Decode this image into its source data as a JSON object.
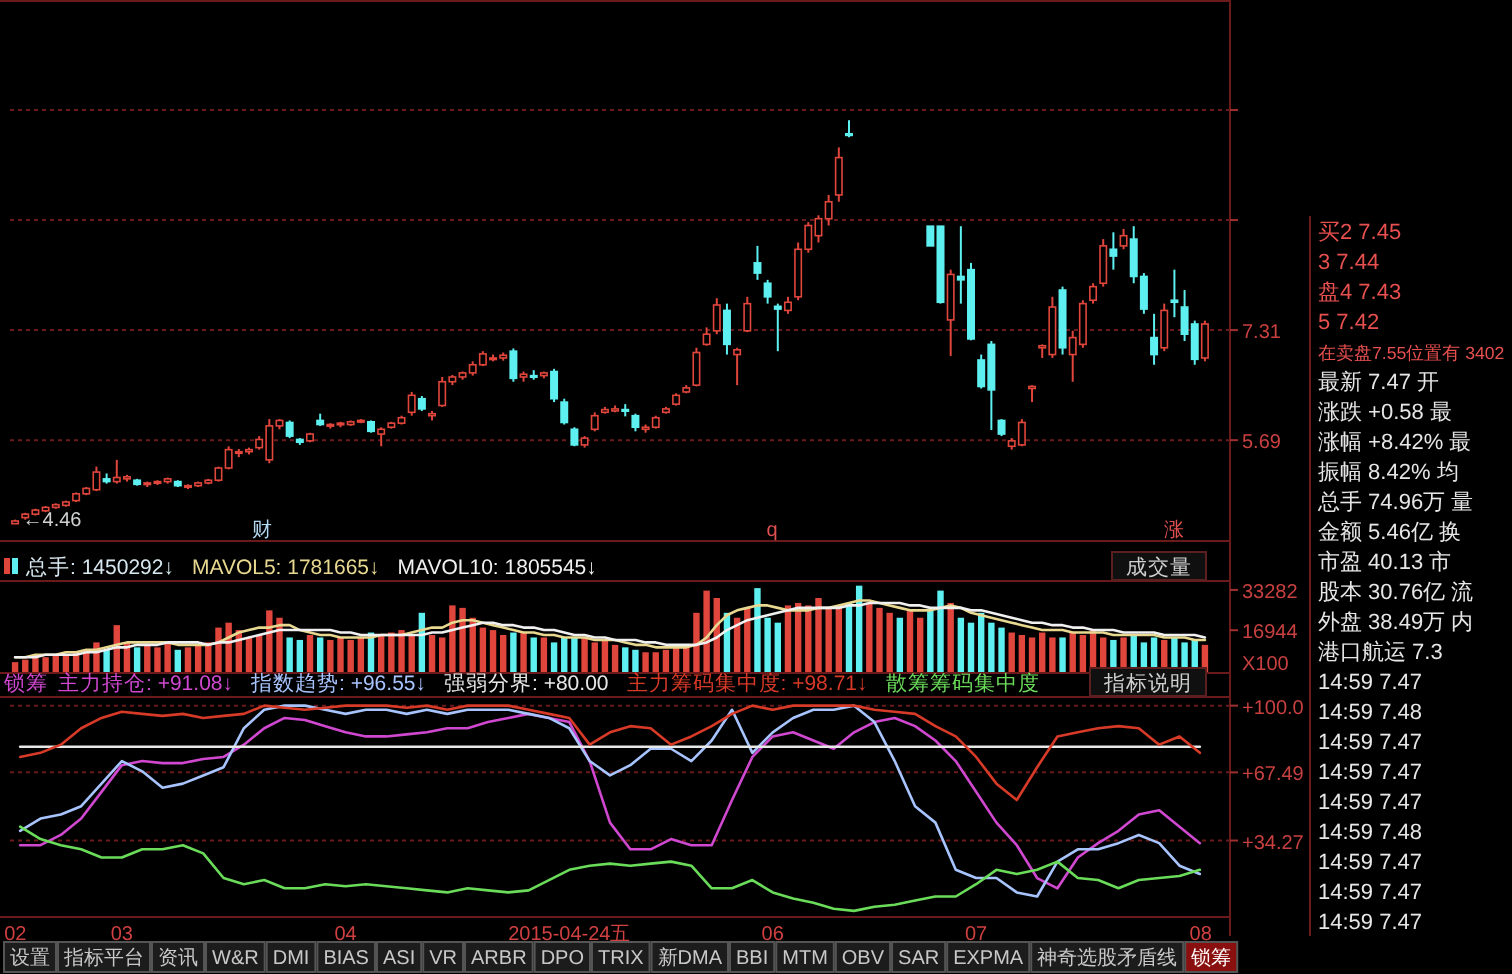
{
  "chart_data": [
    {
      "type": "candlestick",
      "categories": [
        null,
        null,
        null,
        null,
        null,
        null,
        null,
        null,
        null,
        null,
        null,
        null,
        null,
        null,
        null,
        null,
        null,
        null,
        null,
        null,
        null,
        null,
        null,
        null,
        null,
        null,
        null,
        null,
        null,
        null,
        null,
        null,
        null,
        null,
        null,
        null,
        null,
        null,
        null,
        null,
        null,
        null,
        null,
        null,
        null,
        null,
        null,
        null,
        null,
        null,
        null,
        null,
        null,
        null,
        null,
        null,
        null,
        null,
        null,
        null,
        null,
        null,
        null,
        null,
        null,
        null,
        null,
        null,
        null,
        null,
        null,
        null,
        null,
        null,
        null,
        null,
        null,
        null,
        null,
        null,
        null,
        null,
        null,
        null,
        null,
        null,
        null,
        null,
        null,
        null,
        null,
        null,
        null,
        null,
        null,
        null,
        null,
        null,
        null,
        null,
        null,
        null,
        null,
        null,
        null,
        null,
        null,
        null,
        null,
        null,
        null,
        null,
        null,
        null,
        null,
        null,
        null,
        null
      ],
      "ohlc": [
        [
          4.46,
          4.52,
          4.46,
          4.5
        ],
        [
          4.55,
          4.62,
          4.52,
          4.6
        ],
        [
          4.6,
          4.68,
          4.58,
          4.66
        ],
        [
          4.65,
          4.72,
          4.63,
          4.7
        ],
        [
          4.7,
          4.76,
          4.68,
          4.74
        ],
        [
          4.73,
          4.8,
          4.71,
          4.78
        ],
        [
          4.8,
          4.92,
          4.78,
          4.9
        ],
        [
          4.9,
          5.0,
          4.88,
          4.98
        ],
        [
          4.96,
          5.3,
          4.94,
          5.22
        ],
        [
          5.12,
          5.2,
          5.05,
          5.08
        ],
        [
          5.08,
          5.4,
          5.05,
          5.14
        ],
        [
          5.12,
          5.18,
          5.08,
          5.15
        ],
        [
          5.1,
          5.12,
          5.02,
          5.04
        ],
        [
          5.04,
          5.08,
          5.0,
          5.06
        ],
        [
          5.06,
          5.1,
          5.03,
          5.08
        ],
        [
          5.08,
          5.14,
          5.05,
          5.12
        ],
        [
          5.08,
          5.1,
          5.0,
          5.02
        ],
        [
          5.0,
          5.04,
          4.97,
          5.02
        ],
        [
          5.02,
          5.08,
          5.0,
          5.06
        ],
        [
          5.06,
          5.12,
          5.04,
          5.1
        ],
        [
          5.1,
          5.3,
          5.08,
          5.28
        ],
        [
          5.28,
          5.6,
          5.26,
          5.55
        ],
        [
          5.5,
          5.56,
          5.44,
          5.52
        ],
        [
          5.52,
          5.58,
          5.48,
          5.55
        ],
        [
          5.58,
          5.75,
          5.55,
          5.7
        ],
        [
          5.4,
          6.0,
          5.35,
          5.9
        ],
        [
          5.9,
          6.0,
          5.85,
          5.98
        ],
        [
          5.95,
          5.98,
          5.72,
          5.75
        ],
        [
          5.7,
          5.72,
          5.62,
          5.66
        ],
        [
          5.68,
          5.8,
          5.66,
          5.78
        ],
        [
          5.98,
          6.08,
          5.9,
          5.92
        ],
        [
          5.9,
          5.94,
          5.86,
          5.92
        ],
        [
          5.92,
          5.96,
          5.88,
          5.94
        ],
        [
          5.92,
          5.98,
          5.9,
          5.96
        ],
        [
          5.96,
          6.0,
          5.94,
          5.98
        ],
        [
          5.96,
          5.98,
          5.8,
          5.82
        ],
        [
          5.78,
          5.88,
          5.6,
          5.85
        ],
        [
          5.88,
          5.96,
          5.86,
          5.94
        ],
        [
          5.94,
          6.05,
          5.92,
          6.02
        ],
        [
          6.1,
          6.4,
          6.05,
          6.35
        ],
        [
          6.3,
          6.34,
          6.12,
          6.15
        ],
        [
          6.05,
          6.12,
          5.98,
          6.08
        ],
        [
          6.2,
          6.62,
          6.18,
          6.55
        ],
        [
          6.55,
          6.65,
          6.5,
          6.62
        ],
        [
          6.62,
          6.7,
          6.58,
          6.68
        ],
        [
          6.68,
          6.85,
          6.64,
          6.8
        ],
        [
          6.8,
          7.0,
          6.78,
          6.96
        ],
        [
          6.88,
          6.95,
          6.85,
          6.9
        ],
        [
          6.9,
          6.98,
          6.86,
          6.94
        ],
        [
          7.0,
          7.04,
          6.55,
          6.6
        ],
        [
          6.62,
          6.7,
          6.55,
          6.66
        ],
        [
          6.64,
          6.72,
          6.58,
          6.62
        ],
        [
          6.64,
          6.7,
          6.6,
          6.68
        ],
        [
          6.7,
          6.74,
          6.25,
          6.3
        ],
        [
          6.25,
          6.3,
          5.92,
          5.95
        ],
        [
          5.85,
          5.88,
          5.6,
          5.62
        ],
        [
          5.62,
          5.75,
          5.58,
          5.72
        ],
        [
          5.85,
          6.1,
          5.82,
          6.05
        ],
        [
          6.1,
          6.18,
          6.08,
          6.14
        ],
        [
          6.12,
          6.2,
          6.1,
          6.15
        ],
        [
          6.14,
          6.22,
          6.04,
          6.12
        ],
        [
          6.05,
          6.08,
          5.82,
          5.88
        ],
        [
          5.85,
          5.92,
          5.8,
          5.88
        ],
        [
          5.88,
          6.05,
          5.86,
          6.02
        ],
        [
          6.1,
          6.18,
          6.08,
          6.15
        ],
        [
          6.22,
          6.38,
          6.2,
          6.35
        ],
        [
          6.4,
          6.5,
          6.38,
          6.46
        ],
        [
          6.5,
          7.05,
          6.48,
          6.98
        ],
        [
          7.1,
          7.35,
          7.08,
          7.25
        ],
        [
          7.3,
          7.78,
          7.25,
          7.68
        ],
        [
          7.6,
          7.7,
          6.95,
          7.1
        ],
        [
          6.95,
          7.05,
          6.5,
          7.02
        ],
        [
          7.3,
          7.8,
          7.28,
          7.7
        ],
        [
          8.3,
          8.55,
          8.05,
          8.15
        ],
        [
          8.0,
          8.05,
          7.7,
          7.8
        ],
        [
          7.66,
          7.7,
          7.0,
          7.62
        ],
        [
          7.6,
          7.8,
          7.55,
          7.72
        ],
        [
          7.8,
          8.6,
          7.75,
          8.5
        ],
        [
          8.5,
          8.9,
          8.45,
          8.85
        ],
        [
          8.7,
          9.0,
          8.6,
          8.95
        ],
        [
          8.95,
          9.3,
          8.85,
          9.2
        ],
        [
          9.3,
          10.0,
          9.2,
          9.85
        ],
        [
          10.2,
          10.4,
          10.15,
          10.18
        ],
        null,
        null,
        null,
        null,
        null,
        null,
        null,
        [
          8.84,
          8.84,
          8.55,
          8.55
        ],
        [
          8.84,
          8.84,
          7.7,
          7.72
        ],
        [
          7.46,
          8.2,
          6.93,
          8.13
        ],
        [
          8.1,
          8.84,
          7.7,
          8.05
        ],
        [
          8.2,
          8.3,
          7.16,
          7.18
        ],
        [
          6.87,
          6.95,
          6.45,
          6.48
        ],
        [
          7.1,
          7.15,
          5.84,
          6.43
        ],
        [
          5.98,
          6.0,
          5.75,
          5.78
        ],
        [
          5.6,
          5.72,
          5.55,
          5.68
        ],
        [
          5.62,
          6.0,
          5.6,
          5.95
        ],
        [
          6.45,
          6.5,
          6.25,
          6.48
        ],
        [
          7.05,
          7.1,
          6.9,
          7.08
        ],
        [
          6.95,
          7.8,
          6.9,
          7.65
        ],
        [
          7.9,
          7.95,
          6.95,
          7.05
        ],
        [
          6.95,
          7.3,
          6.55,
          7.2
        ],
        [
          7.1,
          7.75,
          7.05,
          7.7
        ],
        [
          7.75,
          8.0,
          7.7,
          7.95
        ],
        [
          8.0,
          8.65,
          7.95,
          8.55
        ],
        [
          8.5,
          8.75,
          8.2,
          8.4
        ],
        [
          8.55,
          8.8,
          8.5,
          8.7
        ],
        [
          8.65,
          8.84,
          8.0,
          8.1
        ],
        [
          8.1,
          8.15,
          7.55,
          7.62
        ],
        [
          7.2,
          7.55,
          6.8,
          6.95
        ],
        [
          7.05,
          7.7,
          7.0,
          7.6
        ],
        [
          7.75,
          8.2,
          7.5,
          7.72
        ],
        [
          7.65,
          7.9,
          7.15,
          7.25
        ],
        [
          7.4,
          7.45,
          6.8,
          6.88
        ],
        [
          6.9,
          7.45,
          6.85,
          7.4
        ]
      ],
      "colors": [
        "#e0463c",
        "#e0463c",
        "#e0463c",
        "#e0463c",
        "#e0463c",
        "#e0463c",
        "#e0463c",
        "#e0463c",
        "#e0463c",
        "#5ef0f0",
        "#e0463c",
        "#e0463c",
        "#5ef0f0",
        "#e0463c",
        "#e0463c",
        "#e0463c",
        "#5ef0f0",
        "#e0463c",
        "#e0463c",
        "#e0463c",
        "#e0463c",
        "#e0463c",
        "#e0463c",
        "#e0463c",
        "#e0463c",
        "#e0463c",
        "#e0463c",
        "#5ef0f0",
        "#5ef0f0",
        "#e0463c",
        "#5ef0f0",
        "#e0463c",
        "#e0463c",
        "#e0463c",
        "#e0463c",
        "#5ef0f0",
        "#e0463c",
        "#e0463c",
        "#e0463c",
        "#e0463c",
        "#5ef0f0",
        "#e0463c",
        "#e0463c",
        "#e0463c",
        "#e0463c",
        "#e0463c",
        "#e0463c",
        "#e0463c",
        "#e0463c",
        "#5ef0f0",
        "#e0463c",
        "#5ef0f0",
        "#e0463c",
        "#5ef0f0",
        "#5ef0f0",
        "#5ef0f0",
        "#e0463c",
        "#e0463c",
        "#e0463c",
        "#e0463c",
        "#5ef0f0",
        "#5ef0f0",
        "#e0463c",
        "#e0463c",
        "#e0463c",
        "#e0463c",
        "#e0463c",
        "#e0463c",
        "#e0463c",
        "#e0463c",
        "#5ef0f0",
        "#e0463c",
        "#e0463c",
        "#5ef0f0",
        "#5ef0f0",
        "#5ef0f0",
        "#e0463c",
        "#e0463c",
        "#e0463c",
        "#e0463c",
        "#e0463c",
        "#e0463c",
        "#5ef0f0",
        null,
        null,
        null,
        null,
        null,
        null,
        null,
        "#5ef0f0",
        "#5ef0f0",
        "#e0463c",
        "#5ef0f0",
        "#5ef0f0",
        "#5ef0f0",
        "#5ef0f0",
        "#5ef0f0",
        "#e0463c",
        "#e0463c",
        "#e0463c",
        "#e0463c",
        "#e0463c",
        "#5ef0f0",
        "#e0463c",
        "#e0463c",
        "#e0463c",
        "#e0463c",
        "#5ef0f0",
        "#e0463c",
        "#5ef0f0",
        "#5ef0f0",
        "#5ef0f0",
        "#e0463c",
        "#5ef0f0",
        "#5ef0f0",
        "#5ef0f0",
        "#e0463c"
      ],
      "ylim": [
        4.22,
        12.17
      ],
      "yticks": [
        5.69,
        7.31,
        {
          "value": 8.93,
          "label": null
        },
        {
          "value": 10.55,
          "label": null
        }
      ],
      "grid": "y",
      "tick_labels": "y",
      "annotations": [
        "←4.46",
        "财",
        "q",
        "涨"
      ]
    },
    {
      "type": "bar",
      "categories": [
        null,
        null,
        null,
        null,
        null,
        null,
        null,
        null,
        null,
        null,
        null,
        null,
        null,
        null,
        null,
        null,
        null,
        null,
        null,
        null,
        null,
        null,
        null,
        null,
        null,
        null,
        null,
        null,
        null,
        null,
        null,
        null,
        null,
        null,
        null,
        null,
        null,
        null,
        null,
        null,
        null,
        null,
        null,
        null,
        null,
        null,
        null,
        null,
        null,
        null,
        null,
        null,
        null,
        null,
        null,
        null,
        null,
        null,
        null,
        null,
        null,
        null,
        null,
        null,
        null,
        null,
        null,
        null,
        null,
        null,
        null,
        null,
        null,
        null,
        null,
        null,
        null,
        null,
        null,
        null,
        null,
        null,
        null,
        null,
        null,
        null,
        null,
        null,
        null,
        null,
        null,
        null,
        null,
        null,
        null,
        null,
        null,
        null,
        null,
        null,
        null,
        null,
        null,
        null,
        null,
        null,
        null,
        null,
        null,
        null,
        null,
        null,
        null,
        null,
        null,
        null,
        null,
        null
      ],
      "series": [
        {
          "name": "总手: 1450292↓",
          "type": "bar",
          "values": [
            4000,
            5000,
            6000,
            6000,
            7000,
            7000,
            8000,
            9000,
            12000,
            9000,
            19000,
            12000,
            10000,
            11000,
            10000,
            12000,
            9000,
            10000,
            11000,
            12000,
            18000,
            20000,
            17000,
            14000,
            15000,
            25000,
            22000,
            14000,
            13000,
            15000,
            14000,
            13000,
            14000,
            13000,
            14000,
            16000,
            15000,
            16000,
            17000,
            15000,
            24000,
            15000,
            14000,
            27000,
            26000,
            22000,
            18000,
            17000,
            15000,
            16000,
            16000,
            14000,
            14000,
            12000,
            14000,
            14000,
            14000,
            12000,
            13000,
            11000,
            10000,
            9000,
            8000,
            8000,
            9000,
            10000,
            11000,
            24000,
            33000,
            30000,
            24000,
            22000,
            26000,
            34000,
            22000,
            20000,
            27000,
            28000,
            27000,
            30000,
            26000,
            27000,
            28000,
            35000,
            28000,
            26000,
            24000,
            22000,
            25000,
            22000,
            25000,
            33000,
            28000,
            22000,
            20000,
            24000,
            20000,
            18000,
            16000,
            15000,
            14000,
            16000,
            14000,
            14000,
            16000,
            15000,
            17000,
            14000,
            13000,
            14000,
            15000,
            12000,
            14000,
            13000,
            14000,
            12000,
            13000,
            11000
          ],
          "colors": [
            "#e0463c",
            "#e0463c",
            "#e0463c",
            "#e0463c",
            "#e0463c",
            "#e0463c",
            "#e0463c",
            "#e0463c",
            "#e0463c",
            "#5ef0f0",
            "#e0463c",
            "#e0463c",
            "#5ef0f0",
            "#e0463c",
            "#e0463c",
            "#e0463c",
            "#5ef0f0",
            "#e0463c",
            "#e0463c",
            "#e0463c",
            "#e0463c",
            "#e0463c",
            "#e0463c",
            "#e0463c",
            "#e0463c",
            "#e0463c",
            "#e0463c",
            "#5ef0f0",
            "#5ef0f0",
            "#e0463c",
            "#5ef0f0",
            "#e0463c",
            "#e0463c",
            "#e0463c",
            "#e0463c",
            "#5ef0f0",
            "#e0463c",
            "#e0463c",
            "#e0463c",
            "#e0463c",
            "#5ef0f0",
            "#e0463c",
            "#e0463c",
            "#e0463c",
            "#e0463c",
            "#e0463c",
            "#e0463c",
            "#e0463c",
            "#e0463c",
            "#5ef0f0",
            "#e0463c",
            "#5ef0f0",
            "#e0463c",
            "#5ef0f0",
            "#5ef0f0",
            "#5ef0f0",
            "#e0463c",
            "#e0463c",
            "#e0463c",
            "#e0463c",
            "#5ef0f0",
            "#5ef0f0",
            "#e0463c",
            "#e0463c",
            "#e0463c",
            "#e0463c",
            "#e0463c",
            "#e0463c",
            "#e0463c",
            "#e0463c",
            "#5ef0f0",
            "#e0463c",
            "#e0463c",
            "#5ef0f0",
            "#5ef0f0",
            "#5ef0f0",
            "#e0463c",
            "#e0463c",
            "#e0463c",
            "#e0463c",
            "#e0463c",
            "#e0463c",
            "#5ef0f0",
            "#5ef0f0",
            "#e0463c",
            "#e0463c",
            "#e0463c",
            "#5ef0f0",
            "#e0463c",
            "#e0463c",
            "#5ef0f0",
            "#5ef0f0",
            "#e0463c",
            "#5ef0f0",
            "#5ef0f0",
            "#5ef0f0",
            "#5ef0f0",
            "#5ef0f0",
            "#e0463c",
            "#e0463c",
            "#e0463c",
            "#e0463c",
            "#e0463c",
            "#5ef0f0",
            "#e0463c",
            "#e0463c",
            "#e0463c",
            "#e0463c",
            "#5ef0f0",
            "#e0463c",
            "#5ef0f0",
            "#5ef0f0",
            "#5ef0f0",
            "#e0463c",
            "#5ef0f0",
            "#5ef0f0",
            "#5ef0f0",
            "#e0463c"
          ]
        },
        {
          "name": "MAVOL5: 1781665↓",
          "type": "line",
          "color": "#e8d890",
          "values": [
            6000,
            6000,
            7000,
            7000,
            7000,
            8000,
            8000,
            9000,
            9000,
            10000,
            11000,
            12000,
            12000,
            12000,
            12000,
            12000,
            11000,
            11000,
            11000,
            11000,
            12000,
            14000,
            16000,
            17000,
            18000,
            18000,
            19000,
            19000,
            17000,
            16000,
            15000,
            15000,
            14000,
            14000,
            14000,
            14000,
            15000,
            15000,
            15000,
            16000,
            17000,
            18000,
            18000,
            20000,
            21000,
            21000,
            20000,
            19000,
            18000,
            17000,
            16000,
            16000,
            15000,
            15000,
            14000,
            14000,
            14000,
            13000,
            13000,
            13000,
            12000,
            11000,
            11000,
            10000,
            10000,
            10000,
            10000,
            11000,
            14000,
            19000,
            23000,
            25000,
            26000,
            27000,
            27000,
            26000,
            25000,
            25000,
            25000,
            26000,
            26000,
            27000,
            28000,
            29000,
            29000,
            28000,
            27000,
            26000,
            25000,
            25000,
            25000,
            26000,
            27000,
            26000,
            24000,
            23000,
            22000,
            21000,
            20000,
            19000,
            18000,
            17000,
            17000,
            17000,
            16000,
            16000,
            16000,
            16000,
            15000,
            15000,
            15000,
            15000,
            15000,
            14000,
            14000,
            14000,
            13000,
            13000
          ]
        },
        {
          "name": "MAVOL10: 1805545↓",
          "type": "line",
          "color": "#f0f0f0",
          "values": [
            6000,
            6000,
            6000,
            7000,
            7000,
            7000,
            7000,
            8000,
            8000,
            9000,
            10000,
            10000,
            11000,
            11000,
            11000,
            12000,
            12000,
            12000,
            12000,
            11000,
            12000,
            12000,
            13000,
            14000,
            15000,
            16000,
            17000,
            17000,
            17000,
            17000,
            17000,
            17000,
            16000,
            16000,
            15000,
            15000,
            15000,
            15000,
            15000,
            15000,
            15000,
            16000,
            16000,
            17000,
            18000,
            19000,
            20000,
            20000,
            19000,
            19000,
            18000,
            18000,
            17000,
            17000,
            16000,
            15000,
            15000,
            14000,
            14000,
            13000,
            13000,
            13000,
            12000,
            12000,
            11000,
            11000,
            11000,
            11000,
            12000,
            14000,
            17000,
            19000,
            21000,
            22000,
            23000,
            24000,
            25000,
            26000,
            26000,
            26000,
            26000,
            26000,
            27000,
            27000,
            28000,
            28000,
            28000,
            28000,
            27000,
            27000,
            26000,
            26000,
            26000,
            26000,
            25000,
            25000,
            24000,
            23000,
            22000,
            21000,
            20000,
            20000,
            19000,
            19000,
            18000,
            18000,
            17000,
            17000,
            17000,
            16000,
            16000,
            16000,
            16000,
            15000,
            15000,
            15000,
            15000,
            14000
          ]
        }
      ],
      "ylim": [
        0,
        37300
      ],
      "yticks": [
        16944,
        33282
      ],
      "ylabel": "X100",
      "tick_labels": "y",
      "legend": "top left",
      "annotations": [
        "成交量"
      ]
    },
    {
      "type": "line",
      "title": "锁筹",
      "categories": [
        "02",
        null,
        null,
        null,
        null,
        "03",
        null,
        null,
        null,
        null,
        null,
        null,
        null,
        null,
        null,
        null,
        "04",
        null,
        null,
        null,
        null,
        null,
        null,
        null,
        null,
        null,
        null,
        "2015-04-24五",
        null,
        null,
        null,
        null,
        null,
        null,
        null,
        null,
        null,
        "06",
        null,
        null,
        null,
        null,
        null,
        null,
        null,
        null,
        null,
        "07",
        null,
        null,
        null,
        null,
        null,
        null,
        null,
        null,
        null,
        null,
        "08"
      ],
      "series": [
        {
          "name": "主力持仓: +91.08↓",
          "color": "#d048d0",
          "values": [
            32,
            32,
            37,
            45,
            58,
            71,
            73,
            72,
            72,
            74,
            75,
            81,
            89,
            94,
            93,
            90,
            87,
            85,
            85,
            86,
            87,
            89,
            89,
            92,
            94,
            96,
            94,
            92,
            73,
            43,
            30,
            30,
            35,
            32,
            32,
            54,
            75,
            85,
            87,
            83,
            79,
            87,
            92,
            94,
            90,
            83,
            73,
            58,
            43,
            32,
            16,
            11,
            26,
            33,
            39,
            47,
            49,
            41,
            33
          ]
        },
        {
          "name": "指数趋势: +96.55↓",
          "color": "#a8c4ff",
          "values": [
            39,
            45,
            47,
            51,
            62,
            73,
            68,
            60,
            62,
            66,
            70,
            89,
            98,
            100,
            100,
            98,
            96,
            98,
            98,
            96,
            98,
            96,
            98,
            98,
            98,
            96,
            94,
            89,
            73,
            66,
            71,
            79,
            79,
            73,
            83,
            98,
            77,
            87,
            94,
            98,
            98,
            100,
            92,
            73,
            51,
            43,
            20,
            16,
            16,
            9,
            7,
            24,
            30,
            30,
            33,
            37,
            33,
            22,
            18
          ]
        },
        {
          "name": "强弱分界: +80.00",
          "color": "#e8e8e8",
          "values": [
            80,
            80,
            80,
            80,
            80,
            80,
            80,
            80,
            80,
            80,
            80,
            80,
            80,
            80,
            80,
            80,
            80,
            80,
            80,
            80,
            80,
            80,
            80,
            80,
            80,
            80,
            80,
            80,
            80,
            80,
            80,
            80,
            80,
            80,
            80,
            80,
            80,
            80,
            80,
            80,
            80,
            80,
            80,
            80,
            80,
            80,
            80,
            80,
            80,
            80,
            80,
            80,
            80,
            80,
            80,
            80,
            80,
            80,
            80
          ]
        },
        {
          "name": "主力筹码集中度: +98.71↓",
          "color": "#d83a28",
          "values": [
            75,
            77,
            81,
            89,
            94,
            97,
            96,
            95,
            96,
            94,
            95,
            96,
            100,
            99,
            98,
            99,
            100,
            100,
            100,
            99,
            100,
            98,
            100,
            100,
            100,
            98,
            96,
            94,
            81,
            87,
            90,
            89,
            81,
            85,
            90,
            96,
            100,
            98,
            100,
            100,
            100,
            100,
            98,
            97,
            96,
            90,
            85,
            75,
            62,
            54,
            70,
            85,
            87,
            89,
            90,
            89,
            81,
            85,
            77
          ]
        },
        {
          "name": "散筹筹码集中度",
          "color": "#6adc5a",
          "values": [
            41,
            35,
            32,
            30,
            26,
            26,
            30,
            30,
            32,
            28,
            16,
            13,
            15,
            11,
            11,
            13,
            12,
            13,
            12,
            11,
            10,
            9,
            11,
            10,
            9,
            10,
            15,
            20,
            22,
            23,
            22,
            23,
            24,
            22,
            11,
            11,
            15,
            9,
            6,
            4,
            1,
            0,
            2,
            3,
            5,
            7,
            7,
            13,
            20,
            18,
            20,
            24,
            16,
            15,
            11,
            15,
            16,
            17,
            20
          ]
        }
      ],
      "ylim": [
        -2.5,
        104.7
      ],
      "yticks": [
        {
          "value": 100,
          "label": "+100.0"
        },
        {
          "value": 67.49,
          "label": "+67.49"
        },
        {
          "value": 34.27,
          "label": "+34.27"
        }
      ],
      "grid": "y",
      "legend": "top left",
      "annotations": [
        "指标说明"
      ]
    },
    {
      "type": "other",
      "annotations": [
        "买2 7.45",
        "3 7.44",
        "盘4 7.43",
        "5 7.42",
        "在卖盘7.55位置有 3402",
        "最新 7.47 开",
        "涨跌 +0.58 最",
        "涨幅 +8.42% 最",
        "振幅 8.42% 均",
        "总手 74.96万 量",
        "金额 5.46亿 换",
        "市盈 40.13 市",
        "股本 30.76亿 流",
        "外盘 38.49万 内",
        "港口航运 7.3",
        "14:59 7.47",
        "14:59 7.48",
        "14:59 7.47",
        "14:59 7.47",
        "14:59 7.47",
        "14:59 7.48",
        "14:59 7.47",
        "14:59 7.47",
        "14:59 7.47"
      ]
    },
    {
      "type": "other",
      "annotations": [
        "设置",
        "指标平台",
        "资讯",
        "W&R",
        "DMI",
        "BIAS",
        "ASI",
        "VR",
        "ARBR",
        "DPO",
        "TRIX",
        "新DMA",
        "BBI",
        "MTM",
        "OBV",
        "SAR",
        "EXPMA",
        "神奇选股矛盾线",
        "锁筹"
      ]
    }
  ]
}
